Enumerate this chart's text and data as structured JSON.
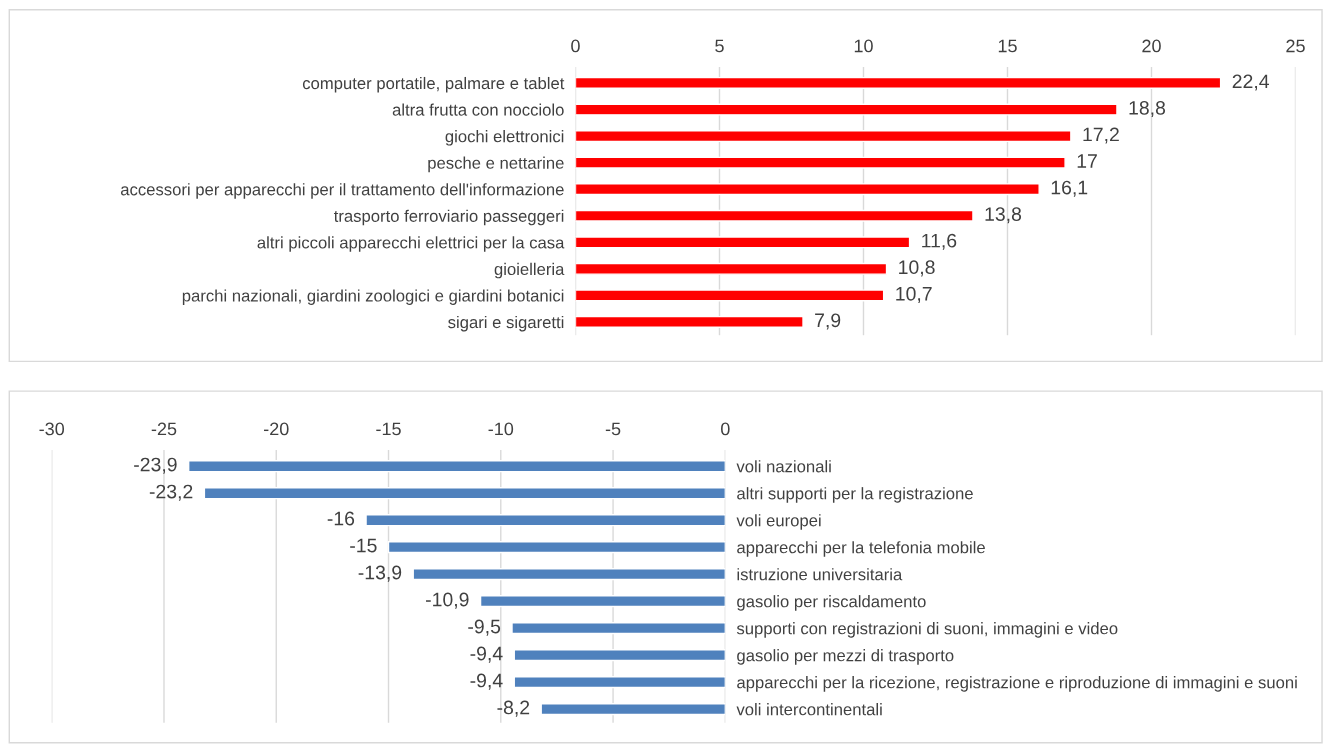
{
  "chart_data": [
    {
      "type": "bar",
      "orientation": "horizontal",
      "categories": [
        "computer portatile, palmare e tablet",
        "altra frutta con nocciolo",
        "giochi elettronici",
        "pesche e nettarine",
        "accessori per apparecchi per il trattamento dell'informazione",
        "trasporto ferroviario passeggeri",
        "altri piccoli apparecchi elettrici per la casa",
        "gioielleria",
        "parchi nazionali, giardini zoologici e giardini botanici",
        "sigari e sigaretti"
      ],
      "values": [
        22.4,
        18.8,
        17.2,
        17,
        16.1,
        13.8,
        11.6,
        10.8,
        10.7,
        7.9
      ],
      "value_labels": [
        "22,4",
        "18,8",
        "17,2",
        "17",
        "16,1",
        "13,8",
        "11,6",
        "10,8",
        "10,7",
        "7,9"
      ],
      "color": "#ff0000",
      "xlim": [
        0,
        25
      ],
      "xticks": [
        0,
        5,
        10,
        15,
        20,
        25
      ],
      "grid": "x",
      "legend": false
    },
    {
      "type": "bar",
      "orientation": "horizontal",
      "categories": [
        "voli nazionali",
        "altri supporti per la registrazione",
        "voli europei",
        "apparecchi per la telefonia mobile",
        "istruzione universitaria",
        "gasolio per riscaldamento",
        "supporti con registrazioni di suoni, immagini e video",
        "gasolio per mezzi di trasporto",
        "apparecchi per la ricezione, registrazione e riproduzione di immagini e suoni",
        "voli intercontinentali"
      ],
      "values": [
        -23.9,
        -23.2,
        -16,
        -15,
        -13.9,
        -10.9,
        -9.5,
        -9.4,
        -9.4,
        -8.2
      ],
      "value_labels": [
        "-23,9",
        "-23,2",
        "-16",
        "-15",
        "-13,9",
        "-10,9",
        "-9,5",
        "-9,4",
        "-9,4",
        "-8,2"
      ],
      "color": "#4f81bd",
      "xlim": [
        -30,
        0
      ],
      "xticks": [
        -30,
        -25,
        -20,
        -15,
        -10,
        -5,
        0
      ],
      "grid": "x",
      "legend": false
    }
  ]
}
